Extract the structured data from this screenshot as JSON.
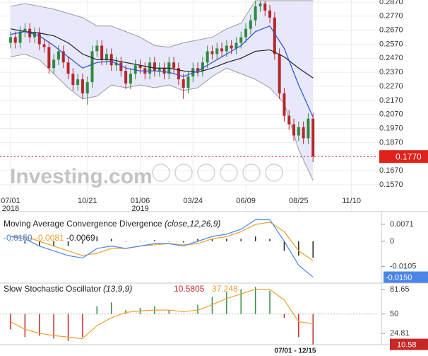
{
  "chart_data": [
    {
      "type": "candlestick",
      "open": [
        0.258,
        0.262,
        0.258,
        0.266,
        0.268,
        0.262,
        0.265,
        0.257,
        0.255,
        0.24,
        0.246,
        0.252,
        0.244,
        0.236,
        0.228,
        0.232,
        0.222,
        0.23,
        0.252,
        0.256,
        0.246,
        0.25,
        0.242,
        0.244,
        0.238,
        0.229,
        0.236,
        0.242,
        0.24,
        0.236,
        0.244,
        0.238,
        0.24,
        0.236,
        0.244,
        0.24,
        0.232,
        0.226,
        0.234,
        0.24,
        0.238,
        0.244,
        0.252,
        0.25,
        0.254,
        0.252,
        0.256,
        0.254,
        0.258,
        0.262,
        0.268,
        0.274,
        0.284,
        0.286,
        0.281,
        0.276,
        0.25,
        0.222,
        0.206,
        0.2,
        0.192,
        0.198,
        0.19,
        0.204
      ],
      "high": [
        0.266,
        0.266,
        0.27,
        0.272,
        0.272,
        0.269,
        0.269,
        0.261,
        0.259,
        0.25,
        0.256,
        0.256,
        0.248,
        0.24,
        0.236,
        0.236,
        0.234,
        0.256,
        0.26,
        0.26,
        0.254,
        0.254,
        0.248,
        0.248,
        0.242,
        0.24,
        0.246,
        0.246,
        0.244,
        0.248,
        0.248,
        0.244,
        0.244,
        0.248,
        0.248,
        0.244,
        0.236,
        0.238,
        0.244,
        0.244,
        0.248,
        0.256,
        0.256,
        0.258,
        0.258,
        0.26,
        0.26,
        0.262,
        0.266,
        0.272,
        0.278,
        0.288,
        0.288,
        0.288,
        0.285,
        0.28,
        0.254,
        0.226,
        0.21,
        0.204,
        0.202,
        0.202,
        0.208,
        0.208
      ],
      "low": [
        0.254,
        0.254,
        0.254,
        0.262,
        0.258,
        0.258,
        0.253,
        0.251,
        0.236,
        0.236,
        0.242,
        0.24,
        0.232,
        0.224,
        0.224,
        0.218,
        0.214,
        0.226,
        0.248,
        0.242,
        0.242,
        0.238,
        0.238,
        0.234,
        0.225,
        0.225,
        0.232,
        0.236,
        0.232,
        0.232,
        0.234,
        0.234,
        0.232,
        0.232,
        0.236,
        0.228,
        0.218,
        0.222,
        0.23,
        0.234,
        0.234,
        0.24,
        0.246,
        0.246,
        0.248,
        0.248,
        0.25,
        0.25,
        0.254,
        0.258,
        0.264,
        0.27,
        0.28,
        0.277,
        0.272,
        0.246,
        0.218,
        0.202,
        0.196,
        0.188,
        0.188,
        0.186,
        0.186,
        0.173
      ],
      "close": [
        0.262,
        0.258,
        0.266,
        0.268,
        0.262,
        0.265,
        0.257,
        0.255,
        0.24,
        0.246,
        0.252,
        0.244,
        0.236,
        0.228,
        0.232,
        0.222,
        0.23,
        0.252,
        0.256,
        0.246,
        0.25,
        0.242,
        0.244,
        0.238,
        0.229,
        0.236,
        0.242,
        0.24,
        0.236,
        0.244,
        0.238,
        0.24,
        0.236,
        0.244,
        0.24,
        0.232,
        0.226,
        0.234,
        0.24,
        0.238,
        0.244,
        0.252,
        0.25,
        0.254,
        0.252,
        0.256,
        0.254,
        0.258,
        0.262,
        0.268,
        0.274,
        0.284,
        0.286,
        0.281,
        0.276,
        0.25,
        0.222,
        0.206,
        0.2,
        0.192,
        0.198,
        0.19,
        0.204,
        0.177
      ],
      "up_color": "#2e8b3e",
      "down_color": "#b8262b",
      "overlay_x": [
        0,
        3,
        6,
        9,
        12,
        15,
        18,
        21,
        24,
        27,
        30,
        33,
        36,
        39,
        42,
        45,
        48,
        51,
        54,
        57,
        60,
        63
      ],
      "band": {
        "fill": "#e8e8fb",
        "color": "#9a9a9a",
        "upper": [
          0.284,
          0.286,
          0.284,
          0.282,
          0.279,
          0.276,
          0.27,
          0.27,
          0.266,
          0.262,
          0.256,
          0.255,
          0.258,
          0.26,
          0.262,
          0.268,
          0.272,
          0.288,
          0.288,
          0.288,
          0.288,
          0.288
        ],
        "lower": [
          0.248,
          0.25,
          0.246,
          0.236,
          0.226,
          0.218,
          0.22,
          0.228,
          0.226,
          0.228,
          0.226,
          0.228,
          0.224,
          0.226,
          0.234,
          0.24,
          0.236,
          0.232,
          0.226,
          0.215,
          0.182,
          0.16
        ]
      },
      "lines": [
        {
          "color": "#222222",
          "values": [
            0.268,
            0.266,
            0.265,
            0.263,
            0.258,
            0.25,
            0.246,
            0.246,
            0.244,
            0.242,
            0.24,
            0.24,
            0.238,
            0.237,
            0.24,
            0.244,
            0.247,
            0.252,
            0.253,
            0.248,
            0.24,
            0.233
          ]
        },
        {
          "color": "#2a4fd6",
          "values": [
            0.264,
            0.266,
            0.263,
            0.256,
            0.248,
            0.24,
            0.244,
            0.245,
            0.24,
            0.238,
            0.238,
            0.237,
            0.234,
            0.238,
            0.244,
            0.25,
            0.256,
            0.266,
            0.27,
            0.254,
            0.228,
            0.205
          ]
        }
      ],
      "last_label": "0.1770",
      "last_color": "#e0201b",
      "xlim": [
        -2.2,
        76.5
      ],
      "xticks": [
        {
          "value": 0,
          "label": "07/01"
        },
        {
          "value": 16,
          "label": "10/21"
        },
        {
          "value": 27,
          "label": "01/06"
        },
        {
          "value": 38,
          "label": "03/24"
        },
        {
          "value": 49,
          "label": "06/09"
        },
        {
          "value": 60,
          "label": "08/25"
        },
        {
          "value": 71,
          "label": "11/10"
        }
      ],
      "xtick_years": [
        {
          "value": 0,
          "label": "2018"
        },
        {
          "value": 27,
          "label": "2019"
        }
      ],
      "ylim": [
        0.1383,
        0.2885
      ],
      "yticks": [
        {
          "value": 0.287,
          "label": "0.2870"
        },
        {
          "value": 0.277,
          "label": "0.2770"
        },
        {
          "value": 0.267,
          "label": "0.2670"
        },
        {
          "value": 0.257,
          "label": "0.2570"
        },
        {
          "value": 0.247,
          "label": "0.2470"
        },
        {
          "value": 0.237,
          "label": "0.2370"
        },
        {
          "value": 0.227,
          "label": "0.2270"
        },
        {
          "value": 0.217,
          "label": "0.2170"
        },
        {
          "value": 0.207,
          "label": "0.2070"
        },
        {
          "value": 0.197,
          "label": "0.1970"
        },
        {
          "value": 0.187,
          "label": "0.1870"
        },
        {
          "value": 0.177,
          "label": "0.1770"
        },
        {
          "value": 0.167,
          "label": "0.1670"
        },
        {
          "value": 0.157,
          "label": "0.1570"
        }
      ],
      "grid": true,
      "watermark": "Investing.com",
      "range_label": "07/01 - 12/15"
    },
    {
      "type": "macd",
      "title": "Moving Average Convergence Divergence",
      "params": "(close,12,26,9)",
      "x": [
        0,
        3,
        6,
        9,
        12,
        15,
        18,
        21,
        24,
        27,
        30,
        33,
        36,
        39,
        42,
        45,
        48,
        51,
        54,
        57,
        60,
        63
      ],
      "macd": {
        "color": "#4a86e8",
        "legend_label": "-0.0150",
        "values": [
          0.002,
          0.001,
          -0.002,
          -0.004,
          -0.006,
          -0.007,
          -0.003,
          -0.002,
          -0.003,
          -0.002,
          -0.001,
          -0.001,
          -0.002,
          0,
          0.002,
          0.003,
          0.005,
          0.009,
          0.009,
          0,
          -0.01,
          -0.015
        ]
      },
      "signal": {
        "color": "#f0a030",
        "legend_label": "-0.0081",
        "values": [
          0.002,
          0.002,
          0,
          -0.002,
          -0.004,
          -0.006,
          -0.005,
          -0.003,
          -0.003,
          -0.002,
          -0.0015,
          -0.001,
          -0.0015,
          -0.001,
          0.001,
          0.002,
          0.004,
          0.007,
          0.008,
          0.004,
          -0.004,
          -0.0081
        ]
      },
      "histogram": {
        "color": "#222222",
        "legend_label": "-0.0069",
        "values": [
          0,
          -0.001,
          -0.002,
          -0.002,
          -0.002,
          -0.001,
          0.002,
          0.001,
          0,
          0,
          0.0005,
          0,
          -0.0005,
          0.001,
          0.001,
          0.001,
          0.001,
          0.002,
          0.001,
          -0.004,
          -0.006,
          -0.0069
        ]
      },
      "ylim": [
        -0.0175,
        0.0121
      ],
      "yticks": [
        0.0071,
        0,
        -0.0105
      ]
    },
    {
      "type": "stochastic",
      "title": "Slow Stochastic Oscillator",
      "params": "(13,9,9)",
      "x": [
        0,
        3,
        6,
        9,
        12,
        15,
        18,
        21,
        24,
        27,
        30,
        33,
        36,
        39,
        42,
        45,
        48,
        51,
        54,
        57,
        60,
        63
      ],
      "bars": {
        "up_color": "#2e8b3e",
        "down_color": "#c62828",
        "legend_label": "10.5805",
        "values": [
          30,
          20,
          22,
          18,
          15,
          20,
          60,
          65,
          55,
          58,
          60,
          55,
          50,
          62,
          72,
          78,
          82,
          85,
          80,
          45,
          20,
          10.5805
        ]
      },
      "signal": {
        "color": "#f0a030",
        "legend_label": "37.248",
        "values": [
          40,
          30,
          25,
          22,
          20,
          18,
          35,
          45,
          52,
          54,
          55,
          55,
          53,
          55,
          62,
          70,
          76,
          82,
          82,
          68,
          40,
          37.248
        ]
      },
      "midline": 50,
      "last_label": "10.58",
      "ylim": [
        12,
        90
      ],
      "yticks": [
        81.65,
        50,
        24.81
      ]
    }
  ]
}
